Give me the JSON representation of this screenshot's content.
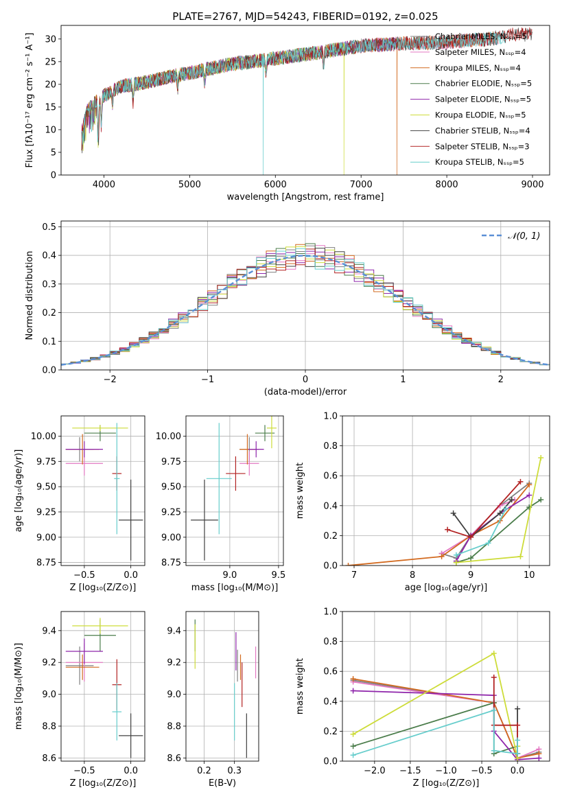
{
  "figure_title": "PLATE=2767, MJD=54243, FIBERID=0192, z=0.025",
  "series_colors": [
    "#808080",
    "#e377c2",
    "#d2691e",
    "#4a7c4a",
    "#8e24aa",
    "#cddc39",
    "#404040",
    "#b22222",
    "#66cdcc"
  ],
  "chart_data": [
    {
      "id": "spectrum",
      "type": "line",
      "xlabel": "wavelength [Angstrom, rest frame]",
      "ylabel": "Flux [fλ10⁻¹⁷ erg cm⁻² s⁻¹ A⁻¹]",
      "xlim": [
        3500,
        9200
      ],
      "ylim": [
        0,
        33
      ],
      "xticks": [
        "4000",
        "5000",
        "6000",
        "7000",
        "8000",
        "9000"
      ],
      "yticks": [
        "0",
        "5",
        "10",
        "15",
        "20",
        "25",
        "30"
      ],
      "grid": false,
      "legend": "top-right",
      "continuum_x": [
        3750,
        3800,
        3900,
        4000,
        4200,
        4500,
        4800,
        5000,
        5500,
        6000,
        6500,
        7000,
        7500,
        8000,
        8500,
        8800
      ],
      "continuum_y": [
        10,
        14,
        16,
        17.5,
        19.5,
        20.5,
        21.8,
        22.5,
        24.5,
        25.7,
        27,
        28.5,
        29,
        29.3,
        30,
        31
      ],
      "series": [
        {
          "name": "Chabrier MILES, Nₛₛₚ=5",
          "x_end": 8600,
          "drop_at": null
        },
        {
          "name": "Salpeter MILES, Nₛₛₚ=4",
          "x_end": 8600,
          "drop_at": null
        },
        {
          "name": "Kroupa MILES, Nₛₛₚ=4",
          "x_end": 8600,
          "drop_at": 7420
        },
        {
          "name": "Chabrier ELODIE, Nₛₛₚ=5",
          "x_end": 7420,
          "drop_at": null
        },
        {
          "name": "Salpeter ELODIE, Nₛₛₚ=5",
          "x_end": 7420,
          "drop_at": null
        },
        {
          "name": "Kroupa ELODIE, Nₛₛₚ=5",
          "x_end": 6800,
          "drop_at": 6800
        },
        {
          "name": "Chabrier STELIB, Nₛₛₚ=4",
          "x_end": 9000,
          "drop_at": null
        },
        {
          "name": "Salpeter STELIB, Nₛₛₚ=3",
          "x_end": 9000,
          "drop_at": null
        },
        {
          "name": "Kroupa STELIB, Nₛₛₚ=5",
          "x_end": 8700,
          "drop_at": 5860
        }
      ]
    },
    {
      "id": "residuals",
      "type": "line",
      "xlabel": "(data-model)/error",
      "ylabel": "Normed distribution",
      "xlim": [
        -2.5,
        2.5
      ],
      "ylim": [
        0,
        0.52
      ],
      "xticks": [
        "−2",
        "−1",
        "0",
        "1",
        "2"
      ],
      "yticks": [
        "0.0",
        "0.1",
        "0.2",
        "0.3",
        "0.4",
        "0.5"
      ],
      "grid": true,
      "legend": "top-right",
      "reference_label": "𝒩(0, 1)",
      "bin_width": 0.1
    },
    {
      "id": "age_vs_Z",
      "type": "scatter",
      "xlabel": "Z [log₁₀(Z/Z⊙)]",
      "ylabel": "age  [log₁₀(age/yr)]",
      "xlim": [
        -0.75,
        0.15
      ],
      "ylim": [
        8.72,
        10.2
      ],
      "xticks": [
        -0.5,
        0.0
      ],
      "yticks": [
        8.75,
        9.0,
        9.25,
        9.5,
        9.75,
        10.0
      ],
      "xtick_labels": [
        "−0.5",
        "0.0"
      ],
      "ytick_labels": [
        "8.75",
        "9.00",
        "9.25",
        "9.50",
        "9.75",
        "10.00"
      ],
      "grid": true,
      "points": [
        {
          "x": -0.55,
          "y": 9.87,
          "xerr": 0.15,
          "yerr": 0.12
        },
        {
          "x": -0.5,
          "y": 9.73,
          "xerr": 0.2,
          "yerr": 0.12
        },
        {
          "x": -0.52,
          "y": 9.87,
          "xerr": 0.18,
          "yerr": 0.15
        },
        {
          "x": -0.33,
          "y": 10.03,
          "xerr": 0.17,
          "yerr": 0.08
        },
        {
          "x": -0.5,
          "y": 9.87,
          "xerr": 0.2,
          "yerr": 0.08
        },
        {
          "x": -0.33,
          "y": 10.08,
          "xerr": 0.3,
          "yerr": 0.03
        },
        {
          "x": 0.0,
          "y": 9.17,
          "xerr": 0.13,
          "yerr": 0.4
        },
        {
          "x": -0.15,
          "y": 9.63,
          "xerr": 0.05,
          "yerr": 0.17
        },
        {
          "x": -0.15,
          "y": 9.58,
          "xerr": 0.03,
          "yerr": 0.55
        }
      ]
    },
    {
      "id": "age_vs_mass",
      "type": "scatter",
      "xlabel": "mass [log₁₀(M/M⊙)]",
      "ylabel": "",
      "xlim": [
        8.55,
        9.55
      ],
      "ylim": [
        8.72,
        10.2
      ],
      "xticks": [
        9.0,
        9.5
      ],
      "yticks": [
        8.75,
        9.0,
        9.25,
        9.5,
        9.75,
        10.0
      ],
      "xtick_labels": [
        "9.0",
        "9.5"
      ],
      "ytick_labels": [
        "8.75",
        "9.00",
        "9.25",
        "9.50",
        "9.75",
        "10.00"
      ],
      "grid": true,
      "points": [
        {
          "x": 9.2,
          "y": 9.87,
          "xerr": 0.1,
          "yerr": 0.12
        },
        {
          "x": 9.2,
          "y": 9.73,
          "xerr": 0.1,
          "yerr": 0.12
        },
        {
          "x": 9.18,
          "y": 9.87,
          "xerr": 0.08,
          "yerr": 0.15
        },
        {
          "x": 9.36,
          "y": 10.03,
          "xerr": 0.1,
          "yerr": 0.08
        },
        {
          "x": 9.27,
          "y": 9.87,
          "xerr": 0.08,
          "yerr": 0.08
        },
        {
          "x": 9.43,
          "y": 10.08,
          "xerr": 0.05,
          "yerr": 0.2
        },
        {
          "x": 8.74,
          "y": 9.17,
          "xerr": 0.14,
          "yerr": 0.4
        },
        {
          "x": 9.06,
          "y": 9.63,
          "xerr": 0.1,
          "yerr": 0.17
        },
        {
          "x": 8.89,
          "y": 9.58,
          "xerr": 0.13,
          "yerr": 0.55
        }
      ]
    },
    {
      "id": "weight_vs_age",
      "type": "line",
      "xlabel": "age  [log₁₀(age/yr)]",
      "ylabel": "mass weight",
      "xlim": [
        6.8,
        10.35
      ],
      "ylim": [
        0,
        1.0
      ],
      "xticks": [
        7,
        8,
        9,
        10
      ],
      "yticks": [
        0,
        0.2,
        0.4,
        0.6,
        0.8,
        1.0
      ],
      "xtick_labels": [
        "7",
        "8",
        "9",
        "10"
      ],
      "ytick_labels": [
        "0.0",
        "0.2",
        "0.4",
        "0.6",
        "0.8",
        "1.0"
      ],
      "grid": true,
      "series": [
        {
          "x": [
            8.5,
            8.75,
            9.0,
            9.5,
            10.0
          ],
          "y": [
            0.08,
            0.05,
            0.2,
            0.4,
            0.55
          ]
        },
        {
          "x": [
            8.5,
            9.0,
            9.5,
            9.75
          ],
          "y": [
            0.08,
            0.2,
            0.4,
            0.44
          ]
        },
        {
          "x": [
            6.9,
            8.5,
            9.0,
            9.5,
            10.0
          ],
          "y": [
            0.0,
            0.06,
            0.2,
            0.3,
            0.54
          ]
        },
        {
          "x": [
            8.75,
            9.0,
            10.0,
            10.2
          ],
          "y": [
            0.02,
            0.05,
            0.39,
            0.44
          ]
        },
        {
          "x": [
            8.75,
            9.0,
            9.5,
            10.0
          ],
          "y": [
            0.03,
            0.2,
            0.35,
            0.47
          ]
        },
        {
          "x": [
            8.75,
            9.85,
            10.2
          ],
          "y": [
            0.02,
            0.06,
            0.72
          ]
        },
        {
          "x": [
            8.7,
            9.0,
            9.5,
            9.7
          ],
          "y": [
            0.35,
            0.19,
            0.35,
            0.44
          ]
        },
        {
          "x": [
            8.6,
            9.0,
            9.85
          ],
          "y": [
            0.24,
            0.19,
            0.56
          ]
        },
        {
          "x": [
            8.75,
            9.3,
            9.6
          ],
          "y": [
            0.07,
            0.15,
            0.38
          ]
        }
      ]
    },
    {
      "id": "mass_vs_Z",
      "type": "scatter",
      "xlabel": "Z [log₁₀(Z/Z⊙)]",
      "ylabel": "mass [log₁₀(M/M⊙)]",
      "xlim": [
        -0.75,
        0.15
      ],
      "ylim": [
        8.58,
        9.52
      ],
      "xticks": [
        -0.5,
        0.0
      ],
      "yticks": [
        8.6,
        8.8,
        9.0,
        9.2,
        9.4
      ],
      "xtick_labels": [
        "−0.5",
        "0.0"
      ],
      "ytick_labels": [
        "8.6",
        "8.8",
        "9.0",
        "9.2",
        "9.4"
      ],
      "grid": true,
      "points": [
        {
          "x": -0.55,
          "y": 9.18,
          "xerr": 0.15,
          "yerr": 0.12
        },
        {
          "x": -0.5,
          "y": 9.2,
          "xerr": 0.2,
          "yerr": 0.12
        },
        {
          "x": -0.52,
          "y": 9.17,
          "xerr": 0.18,
          "yerr": 0.08
        },
        {
          "x": -0.33,
          "y": 9.37,
          "xerr": 0.17,
          "yerr": 0.1
        },
        {
          "x": -0.5,
          "y": 9.27,
          "xerr": 0.2,
          "yerr": 0.08
        },
        {
          "x": -0.33,
          "y": 9.43,
          "xerr": 0.3,
          "yerr": 0.05
        },
        {
          "x": 0.0,
          "y": 8.74,
          "xerr": 0.13,
          "yerr": 0.14
        },
        {
          "x": -0.15,
          "y": 9.06,
          "xerr": 0.05,
          "yerr": 0.16
        },
        {
          "x": -0.15,
          "y": 8.89,
          "xerr": 0.05,
          "yerr": 0.18
        }
      ]
    },
    {
      "id": "mass_vs_EBV",
      "type": "scatter",
      "xlabel": "E(B-V)",
      "ylabel": "",
      "xlim": [
        0.14,
        0.38
      ],
      "ylim": [
        8.58,
        9.52
      ],
      "xticks": [
        0.2,
        0.3
      ],
      "yticks": [
        8.6,
        8.8,
        9.0,
        9.2,
        9.4
      ],
      "xtick_labels": [
        "0.2",
        "0.3"
      ],
      "ytick_labels": [
        "8.6",
        "8.8",
        "9.0",
        "9.2",
        "9.4"
      ],
      "grid": true,
      "points": [
        {
          "x": 0.31,
          "y": 9.18,
          "xerr": 0,
          "yerr": 0.1
        },
        {
          "x": 0.37,
          "y": 9.2,
          "xerr": 0,
          "yerr": 0.1
        },
        {
          "x": 0.32,
          "y": 9.17,
          "xerr": 0,
          "yerr": 0.08
        },
        {
          "x": 0.17,
          "y": 9.37,
          "xerr": 0,
          "yerr": 0.1
        },
        {
          "x": 0.305,
          "y": 9.27,
          "xerr": 0,
          "yerr": 0.12
        },
        {
          "x": 0.17,
          "y": 9.3,
          "xerr": 0,
          "yerr": 0.14
        },
        {
          "x": 0.34,
          "y": 8.74,
          "xerr": 0,
          "yerr": 0.14
        },
        {
          "x": 0.325,
          "y": 9.06,
          "xerr": 0,
          "yerr": 0.14
        },
        {
          "x": 0.3,
          "y": 8.89,
          "xerr": 0,
          "yerr": 0.18
        }
      ]
    },
    {
      "id": "weight_vs_Z",
      "type": "line",
      "xlabel": "Z [log₁₀(Z/Z⊙)]",
      "ylabel": "mass weight",
      "xlim": [
        -2.45,
        0.45
      ],
      "ylim": [
        0,
        1.0
      ],
      "xticks": [
        -2.0,
        -1.5,
        -1.0,
        -0.5,
        0.0
      ],
      "yticks": [
        0,
        0.2,
        0.4,
        0.6,
        0.8,
        1.0
      ],
      "xtick_labels": [
        "−2.0",
        "−1.5",
        "−1.0",
        "−0.5",
        "0.0"
      ],
      "ytick_labels": [
        "0.0",
        "0.2",
        "0.4",
        "0.6",
        "0.8",
        "1.0"
      ],
      "grid": true,
      "series": [
        {
          "x": [
            -2.3,
            -0.33,
            0.0,
            0.3
          ],
          "y": [
            0.54,
            0.39,
            0.02,
            0.06
          ]
        },
        {
          "x": [
            -2.3,
            -0.33,
            0.0,
            0.3
          ],
          "y": [
            0.53,
            0.39,
            0.02,
            0.08
          ]
        },
        {
          "x": [
            -2.3,
            -0.33,
            0.0,
            0.3
          ],
          "y": [
            0.55,
            0.39,
            0.02,
            0.05
          ]
        },
        {
          "x": [
            -2.3,
            -0.33,
            -0.33,
            0.0
          ],
          "y": [
            0.1,
            0.39,
            0.05,
            0.1
          ]
        },
        {
          "x": [
            -2.3,
            -0.33,
            -0.33,
            0.0,
            0.3
          ],
          "y": [
            0.47,
            0.44,
            0.2,
            0.01,
            0.02
          ]
        },
        {
          "x": [
            -2.3,
            -0.33,
            0.0,
            0.0
          ],
          "y": [
            0.18,
            0.72,
            0.02,
            0.1
          ]
        },
        {
          "x": [
            0.0,
            0.0
          ],
          "y": [
            0.35,
            0.05
          ]
        },
        {
          "x": [
            -0.33,
            -0.33,
            0.0,
            0.0
          ],
          "y": [
            0.56,
            0.24,
            0.24,
            0.05
          ]
        },
        {
          "x": [
            -2.3,
            -0.33,
            -0.33,
            0.0,
            0.0
          ],
          "y": [
            0.04,
            0.34,
            0.07,
            0.05,
            0.14
          ]
        }
      ]
    }
  ]
}
